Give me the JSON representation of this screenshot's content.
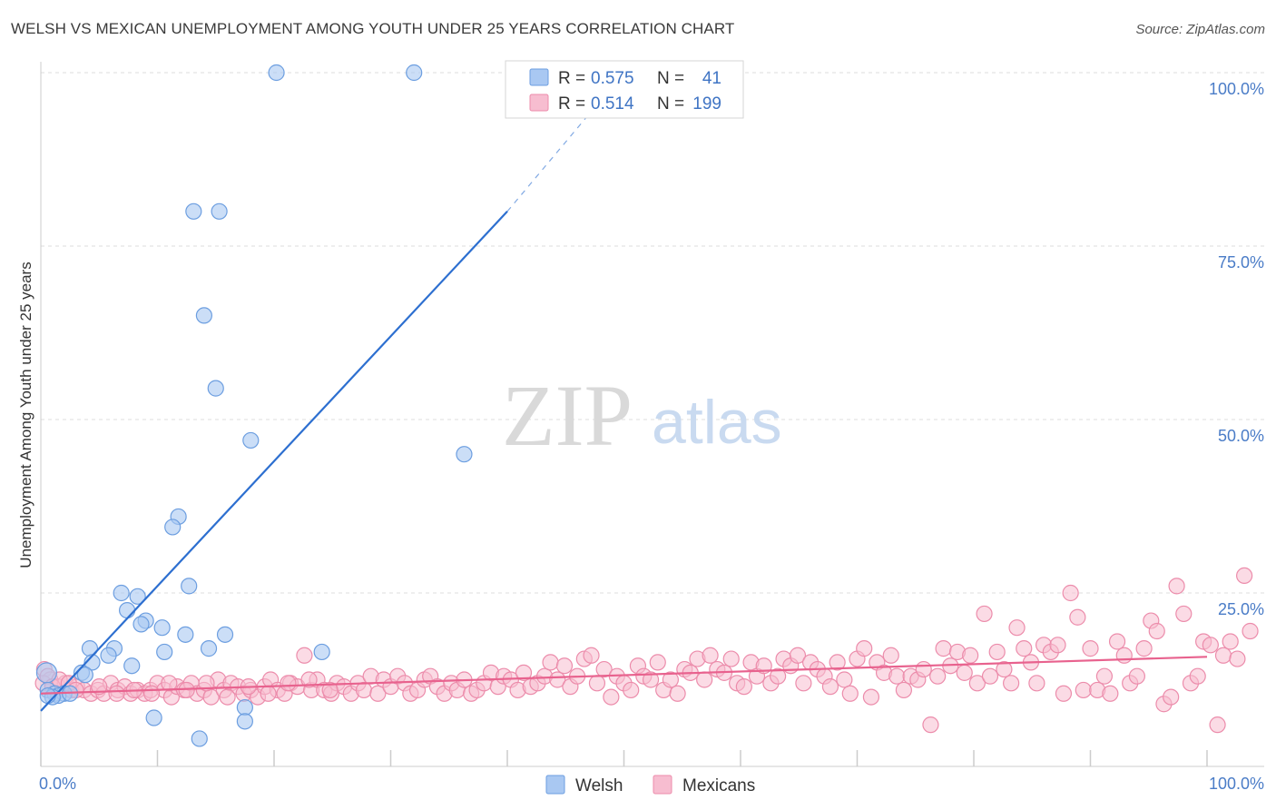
{
  "title": "WELSH VS MEXICAN UNEMPLOYMENT AMONG YOUTH UNDER 25 YEARS CORRELATION CHART",
  "source": "Source: ZipAtlas.com",
  "watermark": {
    "zip": "ZIP",
    "atlas": "atlas"
  },
  "colors": {
    "welsh_fill": "#a9c8f2",
    "welsh_stroke": "#6c9ee0",
    "welsh_line": "#2d6fd0",
    "mex_fill": "#f7bdd0",
    "mex_stroke": "#ec8cab",
    "mex_line": "#e8628e",
    "grid": "#dddddd",
    "tick_text": "#4a7cc7"
  },
  "legend_top": {
    "welsh": {
      "r_label": "R =",
      "r_value": "0.575",
      "n_label": "N =",
      "n_value": "41"
    },
    "mexicans": {
      "r_label": "R =",
      "r_value": "0.514",
      "n_label": "N =",
      "n_value": "199"
    }
  },
  "chart_data": {
    "type": "scatter",
    "title": "WELSH VS MEXICAN UNEMPLOYMENT AMONG YOUTH UNDER 25 YEARS CORRELATION CHART",
    "xlabel": "",
    "ylabel": "Unemployment Among Youth under 25 years",
    "xlim": [
      0,
      100
    ],
    "ylim": [
      0,
      100
    ],
    "x_tick_labels": [
      "0.0%",
      "100.0%"
    ],
    "y_ticks": [
      25,
      50,
      75,
      100
    ],
    "y_tick_labels": [
      "25.0%",
      "50.0%",
      "75.0%",
      "100.0%"
    ],
    "legend": [
      "Welsh",
      "Mexicans"
    ],
    "series": [
      {
        "name": "Welsh",
        "points": [
          [
            20.2,
            100
          ],
          [
            32.0,
            100
          ],
          [
            13.1,
            80
          ],
          [
            15.3,
            80
          ],
          [
            14.0,
            65
          ],
          [
            15.0,
            54.5
          ],
          [
            18.0,
            47
          ],
          [
            36.3,
            45
          ],
          [
            11.8,
            36
          ],
          [
            11.3,
            34.5
          ],
          [
            12.7,
            26
          ],
          [
            6.9,
            25
          ],
          [
            8.3,
            24.5
          ],
          [
            7.4,
            22.5
          ],
          [
            9.0,
            21
          ],
          [
            8.6,
            20.5
          ],
          [
            10.4,
            20
          ],
          [
            12.4,
            19
          ],
          [
            15.8,
            19
          ],
          [
            14.4,
            17
          ],
          [
            4.2,
            17
          ],
          [
            6.3,
            17
          ],
          [
            5.8,
            16
          ],
          [
            10.6,
            16.5
          ],
          [
            24.1,
            16.5
          ],
          [
            4.4,
            15
          ],
          [
            7.8,
            14.5
          ],
          [
            3.5,
            13.5
          ],
          [
            3.8,
            13.2
          ],
          [
            0.5,
            13.5
          ],
          [
            0.6,
            11
          ],
          [
            1.2,
            10.5
          ],
          [
            2.0,
            10.5
          ],
          [
            1.5,
            10.2
          ],
          [
            1.0,
            10
          ],
          [
            2.5,
            10.5
          ],
          [
            17.5,
            8.5
          ],
          [
            9.7,
            7
          ],
          [
            17.5,
            6.5
          ],
          [
            13.6,
            4
          ],
          [
            0.6,
            10.2
          ]
        ]
      },
      {
        "name": "Mexicans",
        "points": [
          [
            0.3,
            14
          ],
          [
            0.8,
            12.5
          ],
          [
            1.5,
            11.5
          ],
          [
            2.1,
            12
          ],
          [
            2.6,
            11
          ],
          [
            3.1,
            11.5
          ],
          [
            3.7,
            11
          ],
          [
            4.3,
            10.5
          ],
          [
            4.9,
            11
          ],
          [
            5.4,
            10.5
          ],
          [
            6.0,
            12
          ],
          [
            6.6,
            11
          ],
          [
            7.2,
            11.5
          ],
          [
            7.7,
            10.5
          ],
          [
            8.3,
            11
          ],
          [
            8.9,
            10.5
          ],
          [
            9.4,
            11
          ],
          [
            10.0,
            12
          ],
          [
            10.6,
            11
          ],
          [
            11.2,
            10
          ],
          [
            11.7,
            11.5
          ],
          [
            12.3,
            11
          ],
          [
            12.9,
            12
          ],
          [
            13.4,
            10.5
          ],
          [
            14.0,
            11
          ],
          [
            14.6,
            10
          ],
          [
            15.2,
            12.5
          ],
          [
            15.7,
            11
          ],
          [
            16.3,
            12
          ],
          [
            16.9,
            11.5
          ],
          [
            17.4,
            10.5
          ],
          [
            18.0,
            11
          ],
          [
            18.6,
            10
          ],
          [
            19.2,
            11.5
          ],
          [
            19.7,
            12.5
          ],
          [
            20.3,
            11
          ],
          [
            20.9,
            10.5
          ],
          [
            21.4,
            12
          ],
          [
            22.0,
            11.5
          ],
          [
            22.6,
            16
          ],
          [
            23.2,
            11
          ],
          [
            23.7,
            12.5
          ],
          [
            24.3,
            11
          ],
          [
            24.9,
            10.5
          ],
          [
            25.4,
            12
          ],
          [
            26.0,
            11.5
          ],
          [
            26.6,
            10.5
          ],
          [
            27.2,
            12
          ],
          [
            27.7,
            11
          ],
          [
            28.3,
            13
          ],
          [
            28.9,
            10.5
          ],
          [
            29.4,
            12.5
          ],
          [
            30.0,
            11.5
          ],
          [
            30.6,
            13
          ],
          [
            31.2,
            12
          ],
          [
            31.7,
            10.5
          ],
          [
            32.3,
            11
          ],
          [
            32.9,
            12.5
          ],
          [
            33.4,
            13
          ],
          [
            34.0,
            11.5
          ],
          [
            34.6,
            10.5
          ],
          [
            35.2,
            12
          ],
          [
            35.7,
            11
          ],
          [
            36.3,
            12.5
          ],
          [
            36.9,
            10.5
          ],
          [
            37.4,
            11
          ],
          [
            38.0,
            12
          ],
          [
            38.6,
            13.5
          ],
          [
            39.2,
            11.5
          ],
          [
            39.7,
            13
          ],
          [
            40.3,
            12.5
          ],
          [
            40.9,
            11
          ],
          [
            41.4,
            13.5
          ],
          [
            42.0,
            11.5
          ],
          [
            42.6,
            12
          ],
          [
            43.2,
            13
          ],
          [
            43.7,
            15
          ],
          [
            44.3,
            12.5
          ],
          [
            44.9,
            14.5
          ],
          [
            45.4,
            11.5
          ],
          [
            46.0,
            13
          ],
          [
            46.6,
            15.5
          ],
          [
            47.2,
            16
          ],
          [
            47.7,
            12
          ],
          [
            48.3,
            14
          ],
          [
            48.9,
            10
          ],
          [
            49.4,
            13
          ],
          [
            50.0,
            12
          ],
          [
            50.6,
            11
          ],
          [
            51.2,
            14.5
          ],
          [
            51.7,
            13
          ],
          [
            52.3,
            12.5
          ],
          [
            52.9,
            15
          ],
          [
            53.4,
            11
          ],
          [
            54.0,
            12.5
          ],
          [
            54.6,
            10.5
          ],
          [
            55.2,
            14
          ],
          [
            55.7,
            13.5
          ],
          [
            56.3,
            15.5
          ],
          [
            56.9,
            12.5
          ],
          [
            57.4,
            16
          ],
          [
            58.0,
            14
          ],
          [
            58.6,
            13.5
          ],
          [
            59.2,
            15.5
          ],
          [
            59.7,
            12
          ],
          [
            60.3,
            11.5
          ],
          [
            60.9,
            15
          ],
          [
            61.4,
            13
          ],
          [
            62.0,
            14.5
          ],
          [
            62.6,
            12
          ],
          [
            63.2,
            13
          ],
          [
            63.7,
            15.5
          ],
          [
            64.3,
            14.5
          ],
          [
            64.9,
            16
          ],
          [
            65.4,
            12
          ],
          [
            66.0,
            15
          ],
          [
            66.6,
            14
          ],
          [
            67.2,
            13
          ],
          [
            67.7,
            11.5
          ],
          [
            68.3,
            15
          ],
          [
            68.9,
            12.5
          ],
          [
            69.4,
            10.5
          ],
          [
            70.0,
            15.5
          ],
          [
            70.6,
            17
          ],
          [
            71.2,
            10
          ],
          [
            71.7,
            15
          ],
          [
            72.3,
            13.5
          ],
          [
            72.9,
            16
          ],
          [
            73.4,
            13
          ],
          [
            74.0,
            11
          ],
          [
            74.6,
            13
          ],
          [
            75.2,
            12.5
          ],
          [
            75.7,
            14
          ],
          [
            76.3,
            6
          ],
          [
            76.9,
            13
          ],
          [
            77.4,
            17
          ],
          [
            78.0,
            14.5
          ],
          [
            78.6,
            16.5
          ],
          [
            79.2,
            13.5
          ],
          [
            79.7,
            16
          ],
          [
            80.3,
            12
          ],
          [
            80.9,
            22
          ],
          [
            81.4,
            13
          ],
          [
            82.0,
            16.5
          ],
          [
            82.6,
            14
          ],
          [
            83.2,
            12
          ],
          [
            83.7,
            20
          ],
          [
            84.3,
            17
          ],
          [
            84.9,
            15
          ],
          [
            85.4,
            12
          ],
          [
            86.0,
            17.5
          ],
          [
            86.6,
            16.5
          ],
          [
            87.2,
            17.5
          ],
          [
            87.7,
            10.5
          ],
          [
            88.3,
            25
          ],
          [
            88.9,
            21.5
          ],
          [
            89.4,
            11
          ],
          [
            90.0,
            17
          ],
          [
            90.6,
            11
          ],
          [
            91.2,
            13
          ],
          [
            91.7,
            10.5
          ],
          [
            92.3,
            18
          ],
          [
            92.9,
            16
          ],
          [
            93.4,
            12
          ],
          [
            94.0,
            13
          ],
          [
            94.6,
            17
          ],
          [
            95.2,
            21
          ],
          [
            95.7,
            19.5
          ],
          [
            96.3,
            9
          ],
          [
            96.9,
            10
          ],
          [
            97.4,
            26
          ],
          [
            98.0,
            22
          ],
          [
            98.6,
            12
          ],
          [
            99.2,
            13
          ],
          [
            99.7,
            18
          ],
          [
            100.3,
            17.5
          ],
          [
            100.9,
            6
          ],
          [
            101.4,
            16
          ],
          [
            102.0,
            18
          ],
          [
            102.6,
            15.5
          ],
          [
            103.2,
            27.5
          ],
          [
            103.7,
            19.5
          ],
          [
            0.2,
            12
          ],
          [
            0.6,
            13
          ],
          [
            1.0,
            11.5
          ],
          [
            1.6,
            12.5
          ],
          [
            2.4,
            12
          ],
          [
            3.0,
            11
          ],
          [
            5.0,
            11.5
          ],
          [
            6.5,
            10.5
          ],
          [
            8.0,
            11
          ],
          [
            9.5,
            10.5
          ],
          [
            11.0,
            12
          ],
          [
            12.5,
            11
          ],
          [
            14.2,
            12
          ],
          [
            16.0,
            10
          ],
          [
            17.8,
            11.5
          ],
          [
            19.5,
            10.5
          ],
          [
            21.2,
            12
          ],
          [
            23.0,
            12.5
          ],
          [
            24.8,
            11
          ]
        ]
      }
    ],
    "trend_lines": [
      {
        "series": "Welsh",
        "start": [
          0,
          8
        ],
        "end": [
          40,
          80
        ],
        "dashed_end": [
          50,
          100
        ]
      },
      {
        "series": "Mexicans",
        "start": [
          0,
          10.5
        ],
        "end": [
          100,
          15.8
        ]
      }
    ]
  },
  "bottom_legend": [
    {
      "label": "Welsh",
      "series": "Welsh"
    },
    {
      "label": "Mexicans",
      "series": "Mexicans"
    }
  ]
}
